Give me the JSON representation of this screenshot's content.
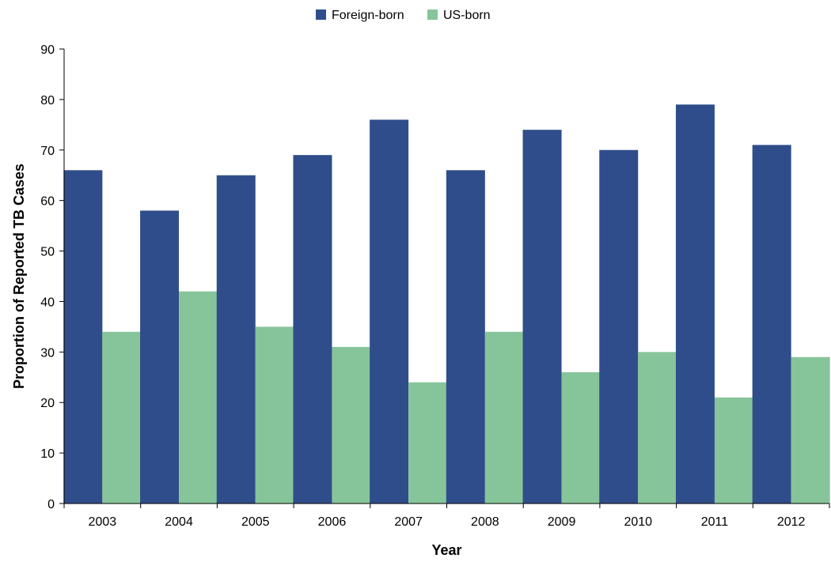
{
  "chart_data": {
    "type": "bar",
    "categories": [
      "2003",
      "2004",
      "2005",
      "2006",
      "2007",
      "2008",
      "2009",
      "2010",
      "2011",
      "2012"
    ],
    "series": [
      {
        "name": "Foreign-born",
        "color": "#2F4D8A",
        "values": [
          66,
          58,
          65,
          69,
          76,
          66,
          74,
          70,
          79,
          71
        ]
      },
      {
        "name": "US-born",
        "color": "#86C59A",
        "values": [
          34,
          42,
          35,
          31,
          24,
          34,
          26,
          30,
          21,
          29
        ]
      }
    ],
    "xlabel": "Year",
    "ylabel": "Proportion of Reported TB Cases",
    "ylim": [
      0,
      90
    ],
    "yticks": [
      0,
      10,
      20,
      30,
      40,
      50,
      60,
      70,
      80,
      90
    ],
    "grid": false,
    "legend_position": "top-center"
  }
}
